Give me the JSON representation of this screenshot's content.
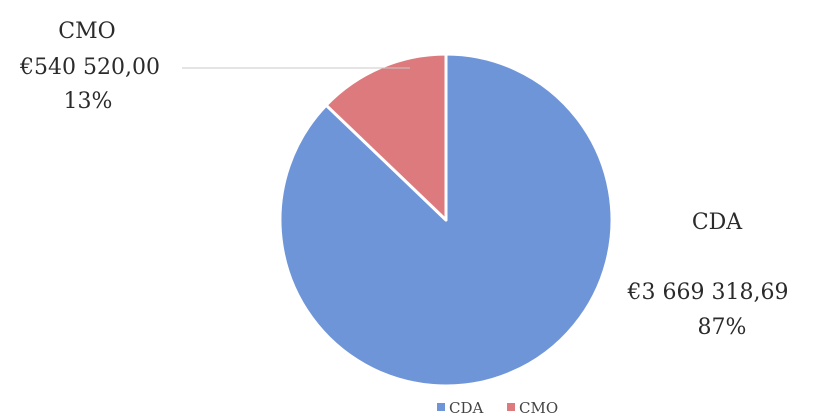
{
  "chart_data": {
    "type": "pie",
    "title": "",
    "slices": [
      {
        "name": "CDA",
        "value": 3669318.69,
        "value_label": "€3 669 318,69",
        "percent_label": "87%",
        "color": "#6f95d9"
      },
      {
        "name": "CMO",
        "value": 540520.0,
        "value_label": "€540 520,00",
        "percent_label": "13%",
        "color": "#dc7a7d"
      }
    ],
    "legend": {
      "position": "bottom",
      "entries": [
        "CDA",
        "CMO"
      ]
    }
  }
}
